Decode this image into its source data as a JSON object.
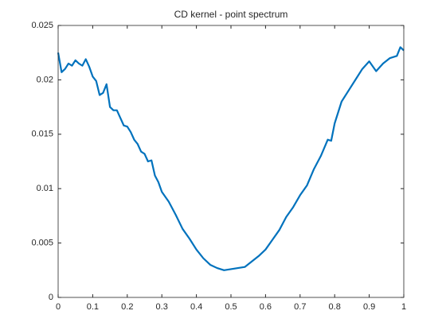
{
  "chart_data": {
    "type": "line",
    "title": "CD kernel - point spectrum",
    "x": [
      0,
      0.01,
      0.02,
      0.03,
      0.04,
      0.05,
      0.06,
      0.07,
      0.08,
      0.09,
      0.1,
      0.11,
      0.12,
      0.13,
      0.14,
      0.15,
      0.16,
      0.17,
      0.18,
      0.19,
      0.2,
      0.21,
      0.22,
      0.23,
      0.24,
      0.25,
      0.26,
      0.27,
      0.28,
      0.29,
      0.3,
      0.32,
      0.34,
      0.36,
      0.38,
      0.4,
      0.42,
      0.44,
      0.46,
      0.48,
      0.5,
      0.52,
      0.54,
      0.56,
      0.58,
      0.6,
      0.62,
      0.64,
      0.66,
      0.68,
      0.7,
      0.72,
      0.74,
      0.76,
      0.78,
      0.79,
      0.8,
      0.82,
      0.84,
      0.86,
      0.88,
      0.9,
      0.92,
      0.94,
      0.96,
      0.98,
      0.99,
      1
    ],
    "series": [
      {
        "color": "#0072bd",
        "values": [
          0.0225,
          0.0207,
          0.021,
          0.0215,
          0.0213,
          0.0218,
          0.0215,
          0.0213,
          0.0219,
          0.0212,
          0.0203,
          0.0199,
          0.0186,
          0.0188,
          0.0196,
          0.0175,
          0.0172,
          0.0172,
          0.0165,
          0.0158,
          0.0157,
          0.0152,
          0.0145,
          0.0141,
          0.0134,
          0.0132,
          0.0125,
          0.0126,
          0.0112,
          0.0106,
          0.0097,
          0.0088,
          0.0076,
          0.0063,
          0.0054,
          0.0044,
          0.0036,
          0.003,
          0.0027,
          0.0025,
          0.0026,
          0.0027,
          0.0028,
          0.0033,
          0.0038,
          0.0044,
          0.0053,
          0.0062,
          0.0074,
          0.0083,
          0.0094,
          0.0103,
          0.0118,
          0.013,
          0.0145,
          0.0144,
          0.016,
          0.018,
          0.019,
          0.02,
          0.021,
          0.0217,
          0.0208,
          0.0215,
          0.022,
          0.0222,
          0.023,
          0.0227
        ]
      }
    ],
    "xlim": [
      0,
      1
    ],
    "xticks": [
      0,
      0.1,
      0.2,
      0.3,
      0.4,
      0.5,
      0.6,
      0.7,
      0.8,
      0.9,
      1
    ],
    "ylim": [
      0,
      0.025
    ],
    "yticks": [
      0,
      0.005,
      0.01,
      0.015,
      0.02,
      0.025
    ]
  }
}
